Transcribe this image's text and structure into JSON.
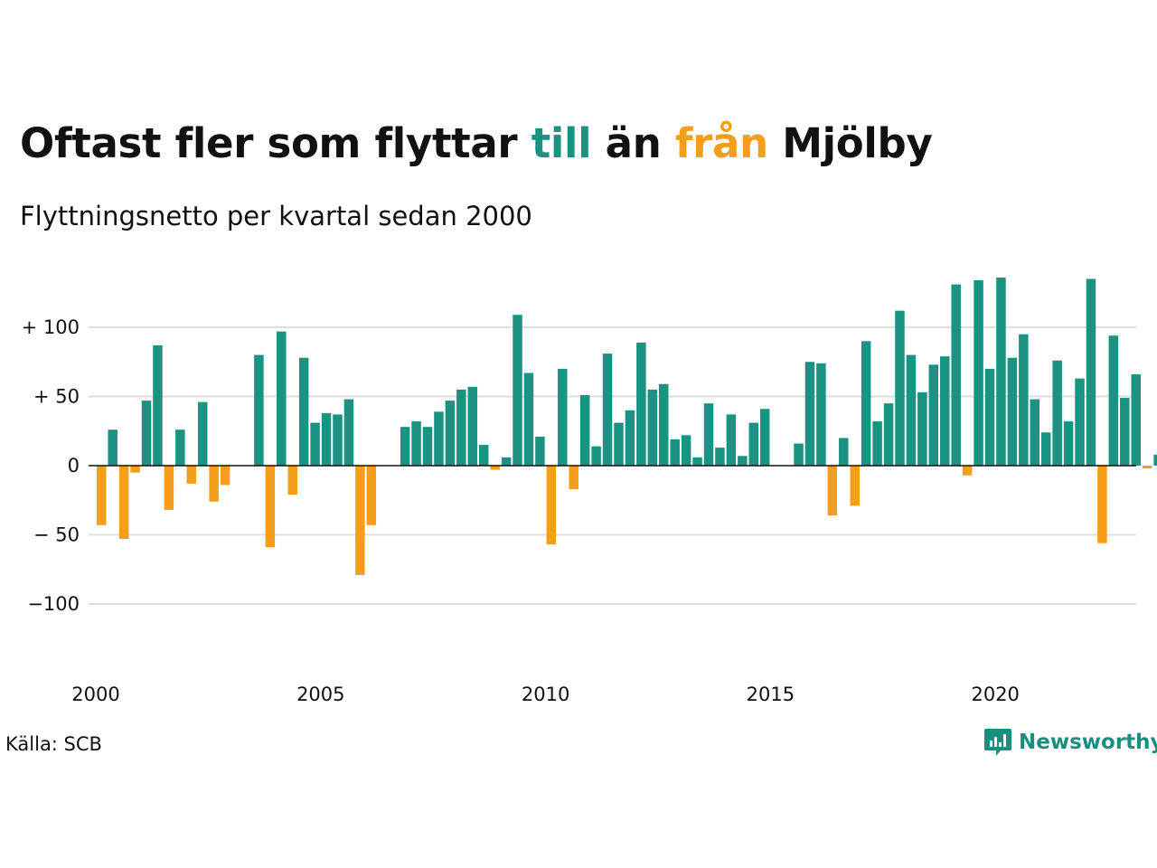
{
  "title": {
    "part1": "Oftast fler som flyttar ",
    "highlight_in": "till",
    "part2": " än ",
    "highlight_out": "från",
    "part3": " Mjölby"
  },
  "subtitle": "Flyttningsnetto per kvartal sedan 2000",
  "source": "Källa: SCB",
  "brand": {
    "name": "Newsworthy",
    "icon": "newsworthy-logo-icon"
  },
  "colors": {
    "positive": "#1a9382",
    "negative": "#f59e1b",
    "title_in": "#1a9382",
    "title_out": "#f59e1b",
    "grid": "#dddddd",
    "zero_line": "#111111"
  },
  "chart_data": {
    "type": "bar",
    "x_start": "2000 Q1",
    "x_tick_labels": [
      "2000",
      "2005",
      "2010",
      "2015",
      "2020"
    ],
    "y_tick_labels": [
      "+ 100",
      "+  50",
      "0",
      "− 50",
      "−100"
    ],
    "y_ticks": [
      100,
      50,
      0,
      -50,
      -100
    ],
    "ylim": [
      -150,
      150
    ],
    "grid": true,
    "values": [
      -43,
      26,
      -53,
      -5,
      47,
      87,
      -32,
      26,
      -13,
      46,
      -26,
      -14,
      0,
      0,
      80,
      -59,
      97,
      -21,
      78,
      31,
      38,
      37,
      48,
      -79,
      -43,
      0,
      0,
      28,
      32,
      28,
      39,
      47,
      55,
      57,
      15,
      -3,
      6,
      109,
      67,
      21,
      -57,
      70,
      -17,
      51,
      14,
      81,
      31,
      40,
      89,
      55,
      59,
      19,
      22,
      6,
      45,
      13,
      37,
      7,
      31,
      41,
      0,
      0,
      16,
      75,
      74,
      -36,
      20,
      -29,
      90,
      32,
      45,
      112,
      80,
      53,
      73,
      79,
      131,
      -7,
      134,
      70,
      136,
      78,
      95,
      48,
      24,
      76,
      32,
      63,
      135,
      -56,
      94,
      49,
      66,
      -2,
      8
    ]
  }
}
